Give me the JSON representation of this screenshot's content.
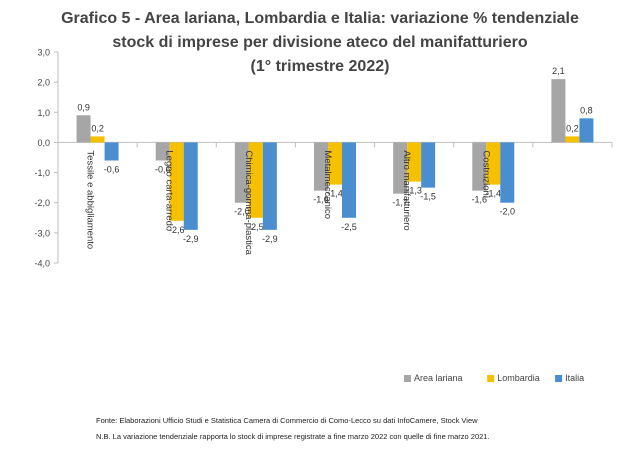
{
  "title_lines": [
    "Grafico 5 - Area lariana, Lombardia e Italia: variazione % tendenziale",
    "stock di imprese per divisione ateco del manifatturiero",
    "(1° trimestre 2022)"
  ],
  "chart_data": {
    "type": "bar",
    "categories": [
      "Tessile e abbigliamento",
      "Legno carta-arredo",
      "Chimica-gomma-plastica",
      "Metalmeccanico",
      "Altro manifatturiero",
      "Costruzioni",
      ""
    ],
    "series": [
      {
        "name": "Area lariana",
        "color": "#a6a6a6",
        "values": [
          0.9,
          -0.6,
          -2.0,
          -1.6,
          -1.7,
          -1.6,
          2.1
        ]
      },
      {
        "name": "Lombardia",
        "color": "#f5c000",
        "values": [
          0.2,
          -2.6,
          -2.5,
          -1.4,
          -1.3,
          -1.4,
          0.2
        ]
      },
      {
        "name": "Italia",
        "color": "#4a8ed0",
        "values": [
          -0.6,
          -2.9,
          -2.9,
          -2.5,
          -1.5,
          -2.0,
          0.8
        ]
      }
    ],
    "data_labels": [
      [
        "0,9",
        "-0,6",
        "-2,0",
        "-1,6",
        "-1,7",
        "-1,6",
        "2,1"
      ],
      [
        "0,2",
        "-2,6",
        "-2,5",
        "-1,4",
        "-1,3",
        "-1,4",
        "0,2"
      ],
      [
        "-0,6",
        "-2,9",
        "-2,9",
        "-2,5",
        "-1,5",
        "-2,0",
        "0,8"
      ]
    ],
    "ylim": [
      -4.0,
      3.0
    ],
    "yticks": [
      "3,0",
      "2,0",
      "1,0",
      "0,0",
      "-1,0",
      "-2,0",
      "-3,0",
      "-4,0"
    ],
    "ytick_values": [
      3,
      2,
      1,
      0,
      -1,
      -2,
      -3,
      -4
    ],
    "grid": false,
    "legend_position": "bottom-right",
    "xlabel": "",
    "ylabel": ""
  },
  "footer": {
    "source": "Fonte: Elaborazioni Ufficio Studi e Statistica Camera di Commercio di Como-Lecco su dati InfoCamere, Stock View",
    "note": "N.B. La variazione tendenziale rapporta lo stock di imprese registrate a fine marzo 2022 con quelle di fine marzo 2021."
  }
}
